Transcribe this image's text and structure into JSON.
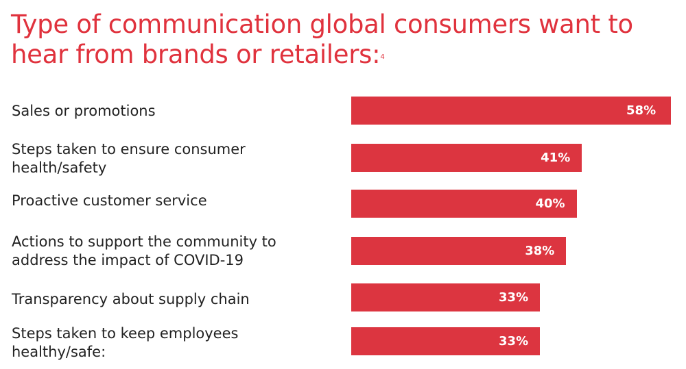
{
  "title": "Type of communication global consumers want to hear from brands or retailers:",
  "footnote": "4",
  "chart_data": {
    "type": "bar",
    "orientation": "horizontal",
    "title": "Type of communication global consumers want to hear from brands or retailers:",
    "categories": [
      "Sales or promotions",
      "Steps taken to ensure consumer health/safety",
      "Proactive customer service",
      "Actions to support the community to address the impact of COVID-19",
      "Transparency about supply chain",
      "Steps taken to keep employees healthy/safe:"
    ],
    "values": [
      58,
      41,
      40,
      38,
      33,
      33
    ],
    "value_labels": [
      "58%",
      "41%",
      "40%",
      "38%",
      "33%",
      "33%"
    ],
    "unit": "%",
    "bar_color": "#dc3540",
    "title_color": "#e0323d",
    "grid": false,
    "legend": "none"
  }
}
